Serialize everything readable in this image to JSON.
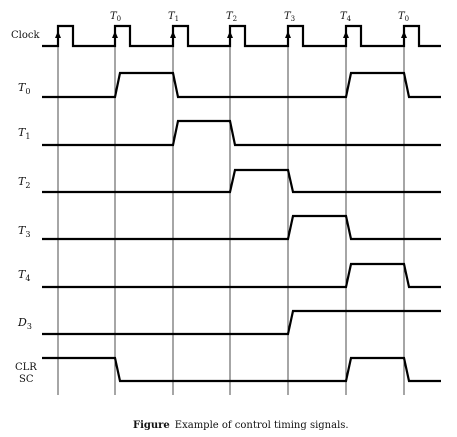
{
  "diagram": {
    "clock_label": "Clock",
    "clock_edge_labels": [
      {
        "main": "T",
        "sub": "0"
      },
      {
        "main": "T",
        "sub": "1"
      },
      {
        "main": "T",
        "sub": "2"
      },
      {
        "main": "T",
        "sub": "3"
      },
      {
        "main": "T",
        "sub": "4"
      },
      {
        "main": "T",
        "sub": "0"
      }
    ],
    "signals": [
      {
        "id": "t0",
        "main": "T",
        "sub": "0",
        "high_intervals": [
          [
            1,
            2
          ],
          [
            5,
            6
          ]
        ]
      },
      {
        "id": "t1",
        "main": "T",
        "sub": "1",
        "high_intervals": [
          [
            2,
            3
          ]
        ]
      },
      {
        "id": "t2",
        "main": "T",
        "sub": "2",
        "high_intervals": [
          [
            3,
            4
          ]
        ]
      },
      {
        "id": "t3",
        "main": "T",
        "sub": "3",
        "high_intervals": [
          [
            4,
            5
          ]
        ]
      },
      {
        "id": "t4",
        "main": "T",
        "sub": "4",
        "high_intervals": [
          [
            5,
            6
          ]
        ]
      },
      {
        "id": "d3",
        "main": "D",
        "sub": "3",
        "high_intervals": [
          [
            4,
            7
          ]
        ]
      },
      {
        "id": "clrsc",
        "lines": [
          "CLR",
          "SC"
        ],
        "high_intervals": [
          [
            0,
            1
          ],
          [
            5,
            6
          ]
        ]
      }
    ]
  },
  "caption": {
    "bold": "Figure",
    "text": "Example of control timing signals."
  }
}
